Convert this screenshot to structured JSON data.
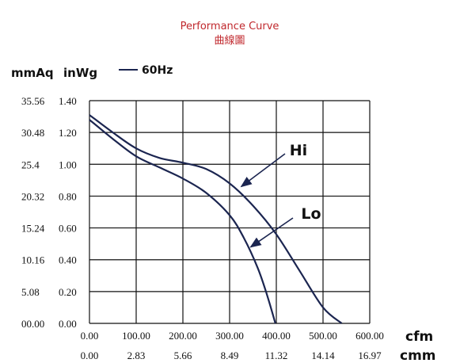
{
  "chart_data": {
    "type": "line",
    "title": "Performance Curve",
    "subtitle": "曲線圖",
    "y_units": {
      "primary": "inWg",
      "secondary": "mmAq"
    },
    "x_units": {
      "primary": "cfm",
      "secondary": "cmm"
    },
    "xlim": [
      0,
      600
    ],
    "ylim": [
      0,
      1.4
    ],
    "grid": true,
    "legend": {
      "label": "60Hz",
      "placement": "top-left"
    },
    "x_ticks_primary": [
      "0.00",
      "100.00",
      "200.00",
      "300.00",
      "400.00",
      "500.00",
      "600.00"
    ],
    "x_ticks_secondary": [
      "0.00",
      "2.83",
      "5.66",
      "8.49",
      "11.32",
      "14.14",
      "16.97"
    ],
    "y_ticks_primary": [
      "0.00",
      "0.20",
      "0.40",
      "0.60",
      "0.80",
      "1.00",
      "1.20",
      "1.40"
    ],
    "y_ticks_secondary": [
      "00.00",
      "5.08",
      "10.16",
      "15.24",
      "20.32",
      "25.4",
      "30.48",
      "35.56"
    ],
    "series": [
      {
        "name": "Hi",
        "x": [
          0,
          50,
          100,
          150,
          200,
          250,
          300,
          350,
          400,
          450,
          500,
          540
        ],
        "y": [
          1.31,
          1.2,
          1.1,
          1.04,
          1.01,
          0.97,
          0.88,
          0.74,
          0.56,
          0.33,
          0.1,
          0.0
        ]
      },
      {
        "name": "Lo",
        "x": [
          0,
          50,
          100,
          150,
          200,
          250,
          300,
          330,
          360,
          380,
          398
        ],
        "y": [
          1.28,
          1.16,
          1.05,
          0.98,
          0.91,
          0.82,
          0.68,
          0.54,
          0.35,
          0.18,
          0.0
        ]
      }
    ],
    "annotations": [
      {
        "text": "Hi",
        "points_to": {
          "series": "Hi",
          "x": 325,
          "y": 0.86
        }
      },
      {
        "text": "Lo",
        "points_to": {
          "series": "Lo",
          "x": 345,
          "y": 0.48
        }
      }
    ]
  }
}
